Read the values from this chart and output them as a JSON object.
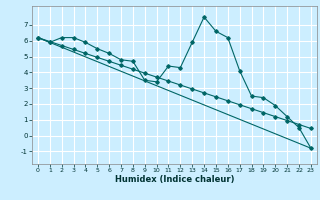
{
  "title": "",
  "xlabel": "Humidex (Indice chaleur)",
  "bg_color": "#cceeff",
  "grid_color": "#ffffff",
  "line_color": "#006666",
  "xlim": [
    -0.5,
    23.5
  ],
  "ylim": [
    -1.8,
    8.2
  ],
  "xticks": [
    0,
    1,
    2,
    3,
    4,
    5,
    6,
    7,
    8,
    9,
    10,
    11,
    12,
    13,
    14,
    15,
    16,
    17,
    18,
    19,
    20,
    21,
    22,
    23
  ],
  "yticks": [
    -1,
    0,
    1,
    2,
    3,
    4,
    5,
    6,
    7
  ],
  "line1_x": [
    0,
    1,
    2,
    3,
    4,
    5,
    6,
    7,
    8,
    9,
    10,
    11,
    12,
    13,
    14,
    15,
    16,
    17,
    18,
    19,
    20,
    21,
    22,
    23
  ],
  "line1_y": [
    6.2,
    5.9,
    6.2,
    6.2,
    5.9,
    5.5,
    5.2,
    4.8,
    4.7,
    3.5,
    3.4,
    4.4,
    4.3,
    5.9,
    7.5,
    6.6,
    6.2,
    4.1,
    2.5,
    2.4,
    1.9,
    1.2,
    0.5,
    -0.8
  ],
  "line2_x": [
    0,
    23
  ],
  "line2_y": [
    6.2,
    -0.8
  ],
  "line3_x": [
    0,
    1,
    2,
    3,
    4,
    5,
    6,
    7,
    8,
    9,
    10,
    11,
    12,
    13,
    14,
    15,
    16,
    17,
    18,
    19,
    20,
    21,
    22,
    23
  ],
  "line3_y": [
    6.2,
    5.95,
    5.7,
    5.45,
    5.2,
    4.95,
    4.7,
    4.45,
    4.2,
    3.95,
    3.7,
    3.45,
    3.2,
    2.95,
    2.7,
    2.45,
    2.2,
    1.95,
    1.7,
    1.45,
    1.2,
    0.95,
    0.7,
    0.45
  ]
}
